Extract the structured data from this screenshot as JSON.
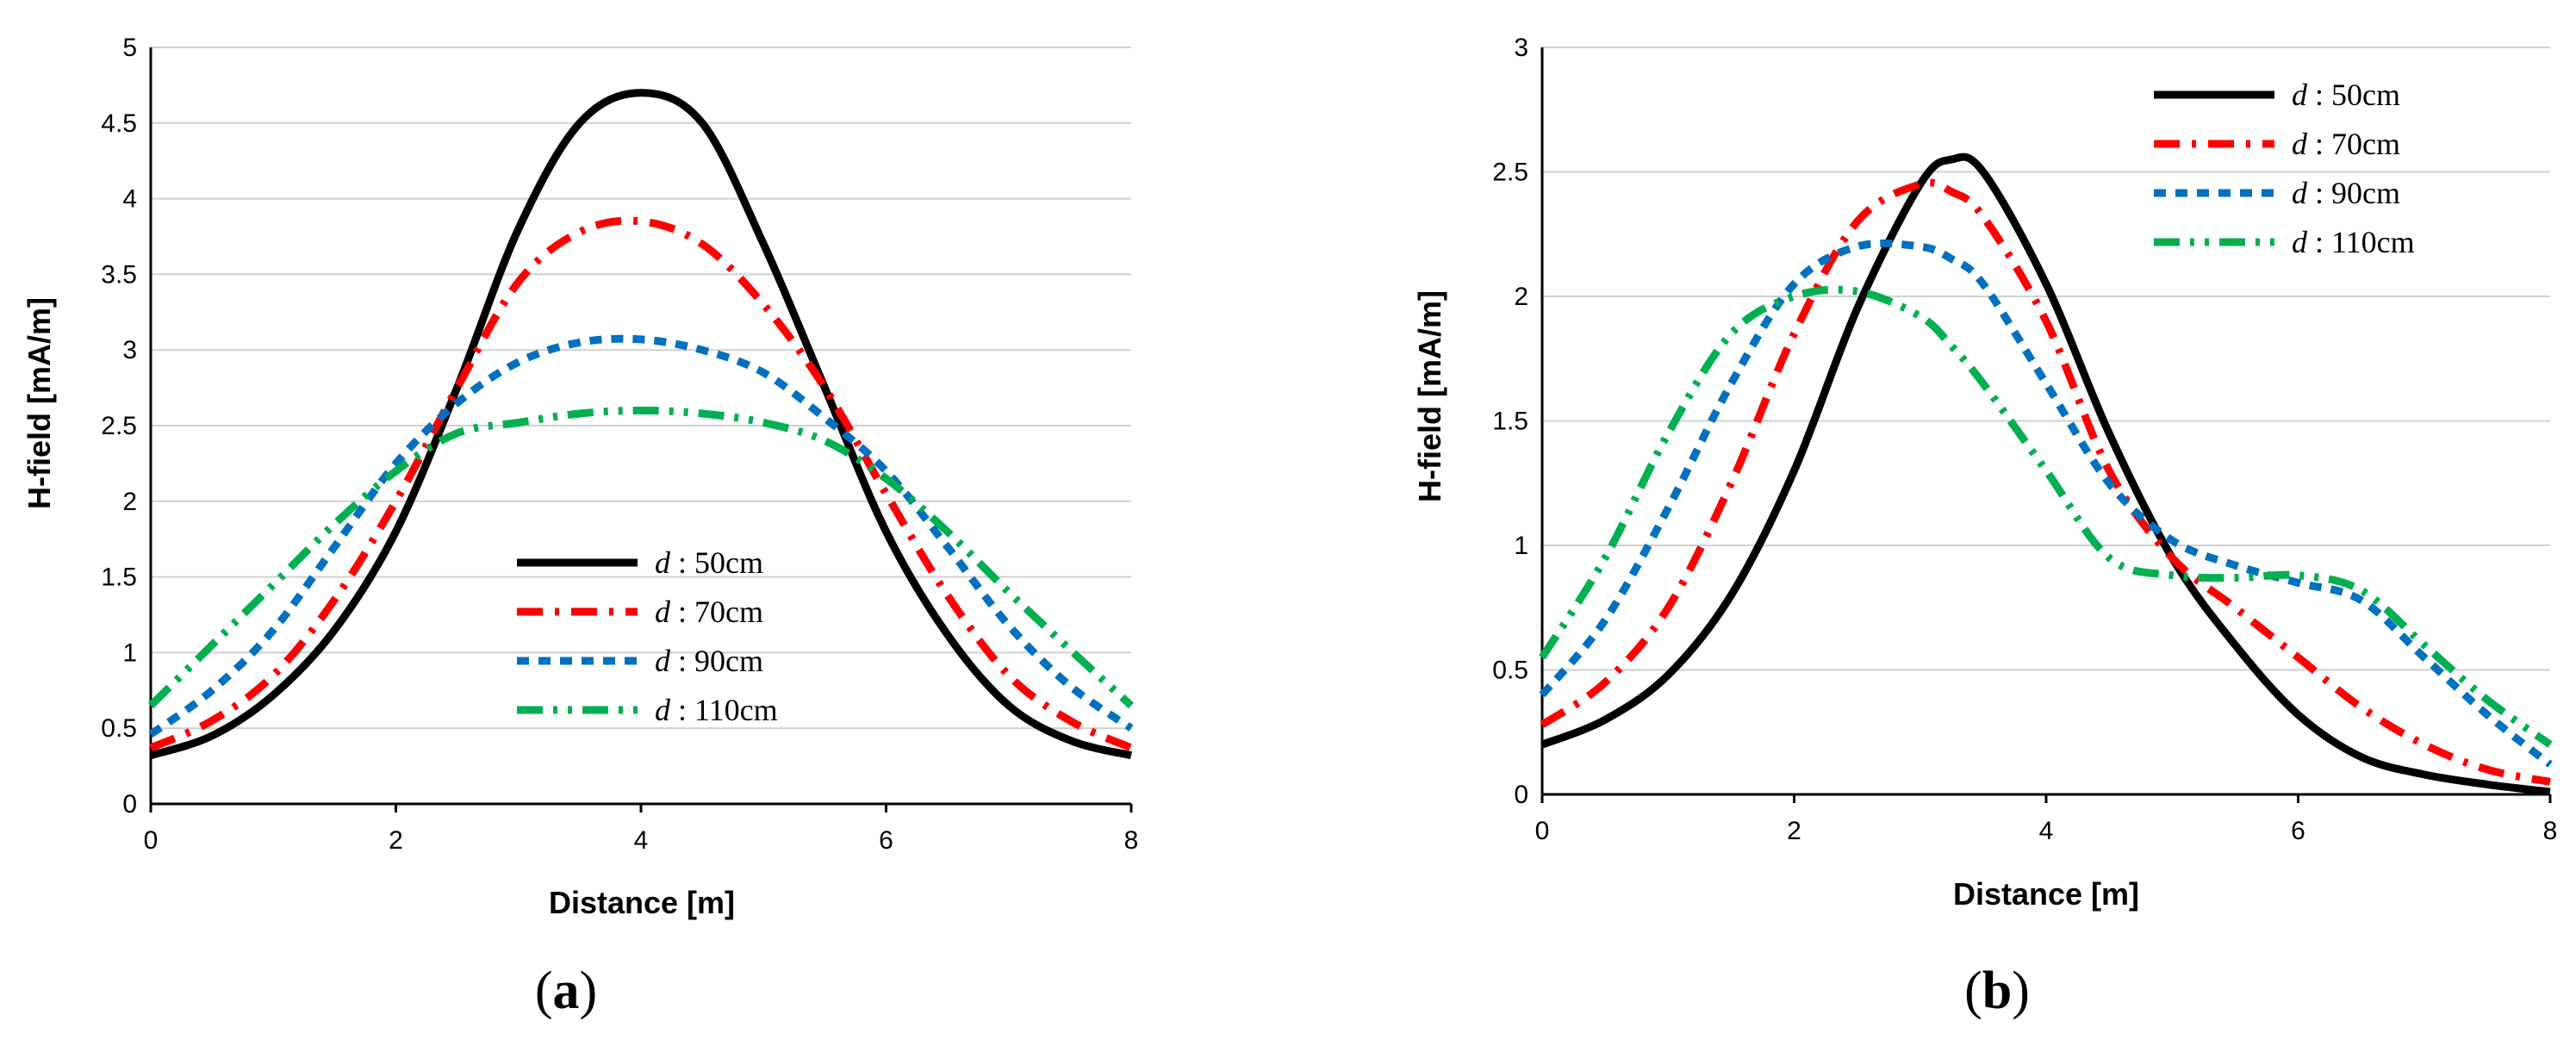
{
  "chart_data": [
    {
      "type": "line",
      "panel_label": "a",
      "title": "",
      "xlabel": "Distance [m]",
      "ylabel": "H-field [mA/m]",
      "xlim": [
        0,
        8
      ],
      "ylim": [
        0,
        5
      ],
      "xticks": [
        "0",
        "2",
        "4",
        "6",
        "8"
      ],
      "yticks": [
        "0",
        "0.5",
        "1",
        "1.5",
        "2",
        "2.5",
        "3",
        "3.5",
        "4",
        "4.5",
        "5"
      ],
      "grid": true,
      "legend_position": "lower-center",
      "legend_var": "d",
      "x": [
        0,
        0.5,
        1,
        1.5,
        2,
        2.5,
        3,
        3.5,
        4,
        4.5,
        5,
        5.5,
        6,
        6.5,
        7,
        7.5,
        8
      ],
      "series": [
        {
          "name": "50cm",
          "color": "#000000",
          "dash": "solid",
          "values": [
            0.32,
            0.45,
            0.72,
            1.15,
            1.8,
            2.75,
            3.8,
            4.5,
            4.7,
            4.5,
            3.7,
            2.75,
            1.8,
            1.12,
            0.65,
            0.42,
            0.32
          ]
        },
        {
          "name": "70cm",
          "color": "#ff0000",
          "dash": "dashdot",
          "values": [
            0.37,
            0.55,
            0.85,
            1.35,
            2.0,
            2.75,
            3.45,
            3.78,
            3.85,
            3.7,
            3.3,
            2.75,
            2.05,
            1.38,
            0.85,
            0.55,
            0.37
          ]
        },
        {
          "name": "90cm",
          "color": "#0070c0",
          "dash": "dash",
          "values": [
            0.46,
            0.75,
            1.15,
            1.7,
            2.25,
            2.65,
            2.92,
            3.05,
            3.07,
            3.0,
            2.85,
            2.55,
            2.2,
            1.7,
            1.18,
            0.78,
            0.5
          ]
        },
        {
          "name": "110cm",
          "color": "#00b050",
          "dash": "dashdotdot",
          "values": [
            0.65,
            1.05,
            1.45,
            1.85,
            2.2,
            2.45,
            2.52,
            2.58,
            2.6,
            2.58,
            2.52,
            2.4,
            2.15,
            1.8,
            1.4,
            1.02,
            0.65
          ]
        }
      ]
    },
    {
      "type": "line",
      "panel_label": "b",
      "title": "",
      "xlabel": "Distance [m]",
      "ylabel": "H-field [mA/m]",
      "xlim": [
        0,
        8
      ],
      "ylim": [
        0,
        3
      ],
      "xticks": [
        "0",
        "2",
        "4",
        "6",
        "8"
      ],
      "yticks": [
        "0",
        "0.5",
        "1",
        "1.5",
        "2",
        "2.5",
        "3"
      ],
      "grid": true,
      "legend_position": "top-right",
      "legend_var": "d",
      "x": [
        0,
        0.5,
        1,
        1.5,
        2,
        2.5,
        3,
        3.25,
        3.5,
        4,
        4.5,
        5,
        5.5,
        6,
        6.5,
        7,
        7.5,
        8
      ],
      "series": [
        {
          "name": "50cm",
          "color": "#000000",
          "dash": "solid",
          "values": [
            0.2,
            0.3,
            0.48,
            0.8,
            1.3,
            1.95,
            2.45,
            2.55,
            2.5,
            2.05,
            1.45,
            0.95,
            0.6,
            0.32,
            0.15,
            0.08,
            0.04,
            0.01
          ]
        },
        {
          "name": "70cm",
          "color": "#ff0000",
          "dash": "dashdot",
          "values": [
            0.28,
            0.45,
            0.75,
            1.25,
            1.85,
            2.3,
            2.45,
            2.42,
            2.32,
            1.9,
            1.3,
            0.95,
            0.75,
            0.55,
            0.35,
            0.2,
            0.1,
            0.05
          ]
        },
        {
          "name": "90cm",
          "color": "#0070c0",
          "dash": "dash",
          "values": [
            0.4,
            0.7,
            1.15,
            1.65,
            2.05,
            2.2,
            2.2,
            2.15,
            2.05,
            1.65,
            1.25,
            1.02,
            0.92,
            0.85,
            0.78,
            0.55,
            0.32,
            0.12
          ]
        },
        {
          "name": "110cm",
          "color": "#00b050",
          "dash": "dashdotdot",
          "values": [
            0.55,
            0.95,
            1.45,
            1.85,
            2.0,
            2.02,
            1.92,
            1.8,
            1.65,
            1.3,
            0.95,
            0.88,
            0.87,
            0.88,
            0.82,
            0.6,
            0.38,
            0.2
          ]
        }
      ]
    }
  ]
}
